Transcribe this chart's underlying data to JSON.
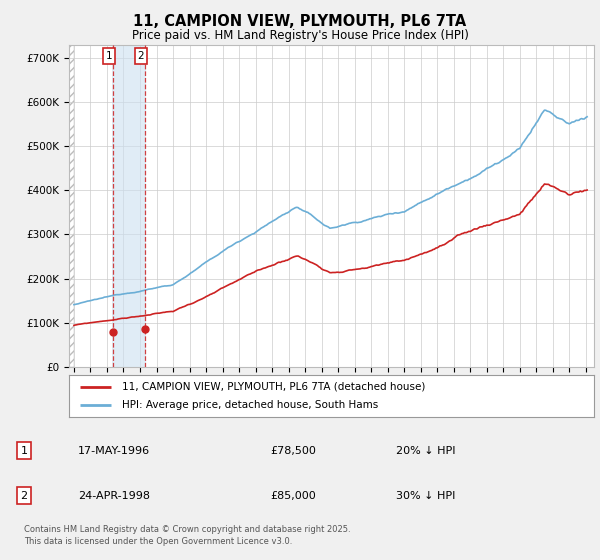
{
  "title1": "11, CAMPION VIEW, PLYMOUTH, PL6 7TA",
  "title2": "Price paid vs. HM Land Registry's House Price Index (HPI)",
  "legend_line1": "11, CAMPION VIEW, PLYMOUTH, PL6 7TA (detached house)",
  "legend_line2": "HPI: Average price, detached house, South Hams",
  "footnote": "Contains HM Land Registry data © Crown copyright and database right 2025.\nThis data is licensed under the Open Government Licence v3.0.",
  "transactions": [
    {
      "num": "1",
      "date": "17-MAY-1996",
      "price": "£78,500",
      "pct": "20% ↓ HPI",
      "year": 1996.37
    },
    {
      "num": "2",
      "date": "24-APR-1998",
      "price": "£85,000",
      "pct": "30% ↓ HPI",
      "year": 1998.3
    }
  ],
  "t1_price": 78500,
  "t2_price": 85000,
  "hpi_color": "#6baed6",
  "price_color": "#cc2222",
  "vline_color": "#cc2222",
  "shade_color": "#cce0f0",
  "hatch_color": "#bbbbbb",
  "ylim": [
    0,
    730000
  ],
  "yticks": [
    0,
    100000,
    200000,
    300000,
    400000,
    500000,
    600000,
    700000
  ],
  "ytick_labels": [
    "£0",
    "£100K",
    "£200K",
    "£300K",
    "£400K",
    "£500K",
    "£600K",
    "£700K"
  ],
  "xmin": 1993.7,
  "xmax": 2025.5,
  "background_color": "#f0f0f0",
  "plot_bg": "#ffffff",
  "grid_color": "#cccccc",
  "legend_border": "#999999",
  "box_border": "#cc2222"
}
